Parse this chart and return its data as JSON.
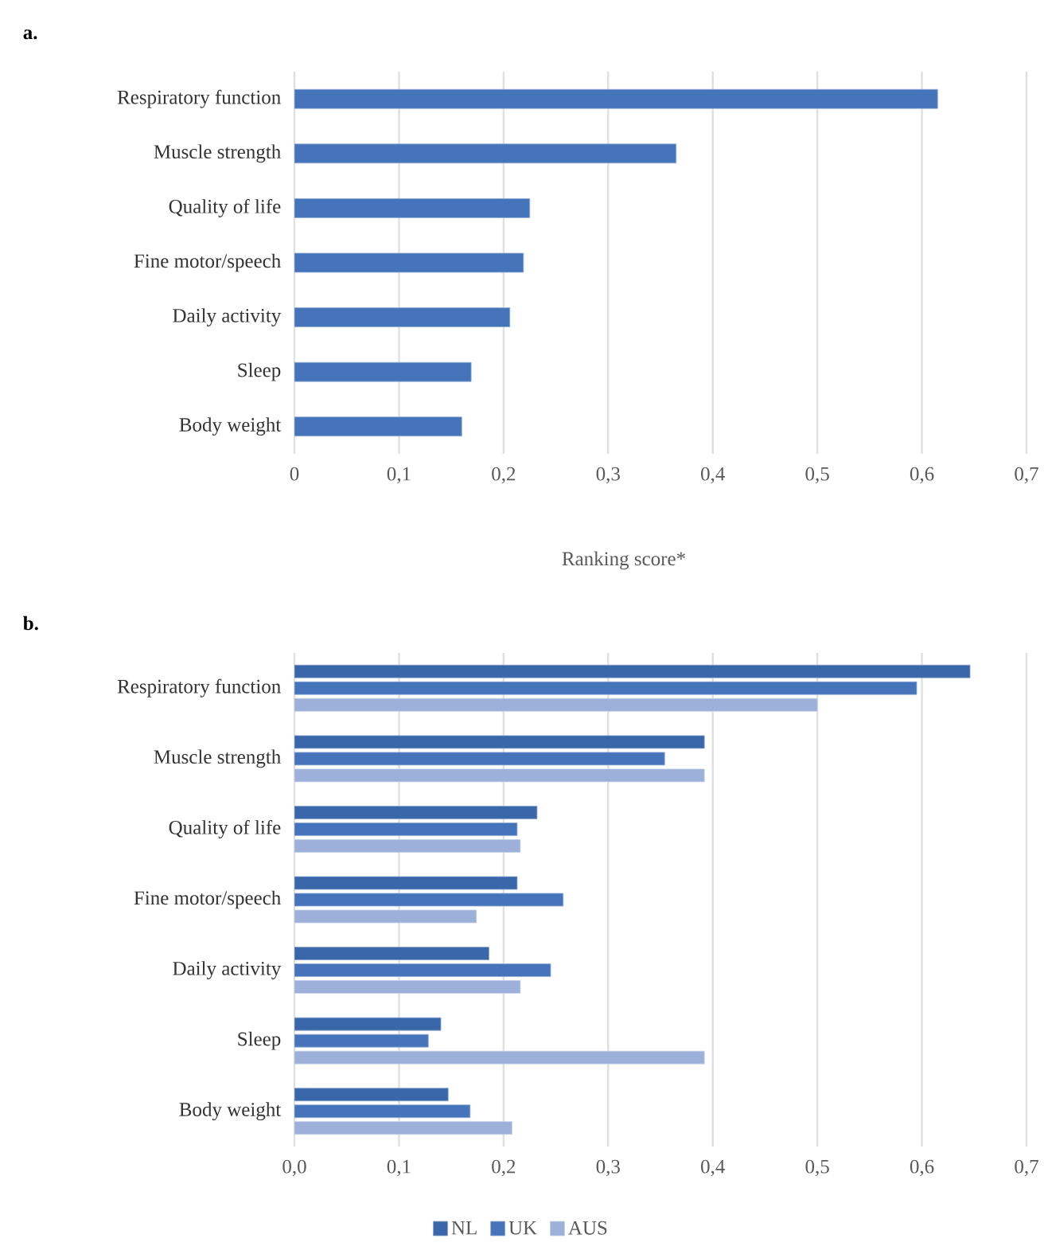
{
  "chart_data": [
    {
      "type": "bar",
      "orientation": "horizontal",
      "title": "a.",
      "xlabel": "Ranking score*",
      "categories": [
        "Respiratory function",
        "Muscle strength",
        "Quality of life",
        "Fine motor/speech",
        "Daily activity",
        "Sleep",
        "Body weight"
      ],
      "series": [
        {
          "color": "#4674bb",
          "values": [
            0.615,
            0.365,
            0.225,
            0.219,
            0.206,
            0.169,
            0.16
          ]
        }
      ],
      "xlim": [
        0,
        0.7
      ],
      "xticks": [
        0,
        {
          "value": 0.1,
          "label": "0,1"
        },
        {
          "value": 0.2,
          "label": "0,2"
        },
        {
          "value": 0.3,
          "label": "0,3"
        },
        {
          "value": 0.4,
          "label": "0,4"
        },
        {
          "value": 0.5,
          "label": "0,5"
        },
        {
          "value": 0.6,
          "label": "0,6"
        },
        {
          "value": 0.7,
          "label": "0,7"
        }
      ],
      "grid": "x",
      "legend": false
    },
    {
      "type": "bar",
      "orientation": "horizontal",
      "title": "b.",
      "categories": [
        "Respiratory function",
        "Muscle strength",
        "Quality of life",
        "Fine motor/speech",
        "Daily activity",
        "Sleep",
        "Body weight"
      ],
      "series": [
        {
          "name": "NL",
          "color": "#3a67aa",
          "values": [
            0.646,
            0.392,
            0.232,
            0.213,
            0.186,
            0.14,
            0.147
          ]
        },
        {
          "name": "UK",
          "color": "#4674bb",
          "values": [
            0.595,
            0.354,
            0.213,
            0.257,
            0.245,
            0.128,
            0.168
          ]
        },
        {
          "name": "AUS",
          "color": "#9db0d9",
          "values": [
            0.5,
            0.392,
            0.216,
            0.174,
            0.216,
            0.392,
            0.208
          ]
        }
      ],
      "xlim": [
        0,
        0.7
      ],
      "xticks": [
        {
          "value": 0,
          "label": "0,0"
        },
        {
          "value": 0.1,
          "label": "0,1"
        },
        {
          "value": 0.2,
          "label": "0,2"
        },
        {
          "value": 0.3,
          "label": "0,3"
        },
        {
          "value": 0.4,
          "label": "0,4"
        },
        {
          "value": 0.5,
          "label": "0,5"
        },
        {
          "value": 0.6,
          "label": "0,6"
        },
        {
          "value": 0.7,
          "label": "0,7"
        }
      ],
      "grid": "x",
      "legend": "bottom"
    }
  ]
}
